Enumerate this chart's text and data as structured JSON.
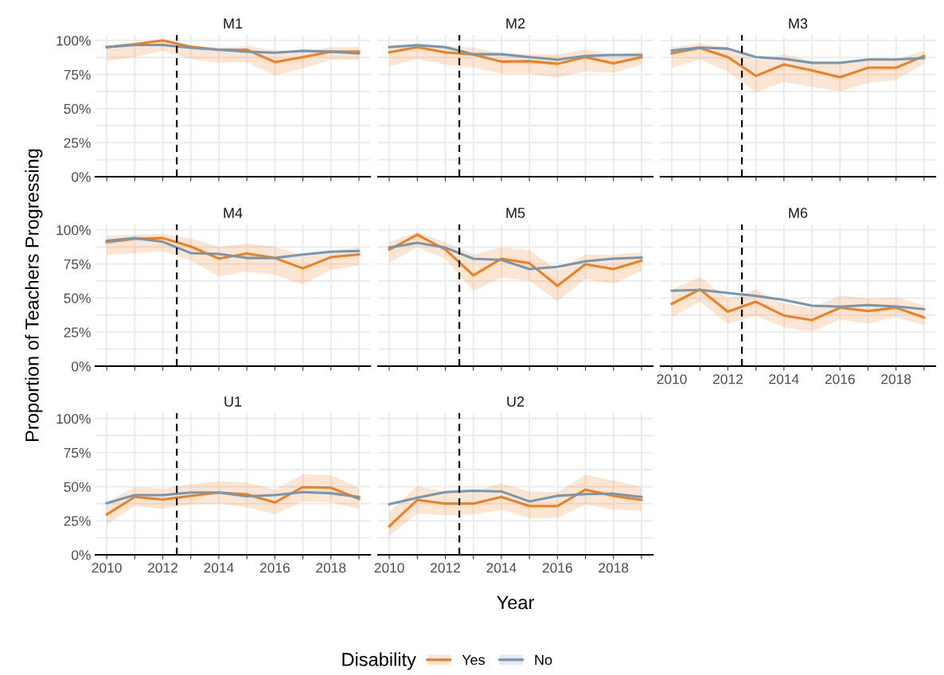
{
  "chart_data": [
    {
      "type": "line",
      "title": "M1",
      "x": [
        2010,
        2011,
        2012,
        2013,
        2014,
        2015,
        2016,
        2017,
        2018,
        2019
      ],
      "xlim": [
        2009.6,
        2019.4
      ],
      "ylim": [
        0,
        104
      ],
      "xticks": [
        {
          "value": 2010,
          "label": null
        },
        {
          "value": 2011,
          "label": null
        },
        {
          "value": 2012,
          "label": null
        },
        {
          "value": 2013,
          "label": null
        },
        {
          "value": 2014,
          "label": null
        },
        {
          "value": 2015,
          "label": null
        },
        {
          "value": 2016,
          "label": null
        },
        {
          "value": 2017,
          "label": null
        },
        {
          "value": 2018,
          "label": null
        },
        {
          "value": 2019,
          "label": null
        }
      ],
      "yticks": [
        {
          "value": 0,
          "label": "0%"
        },
        {
          "value": 12.5,
          "label": null
        },
        {
          "value": 25,
          "label": "25%"
        },
        {
          "value": 37.5,
          "label": null
        },
        {
          "value": 50,
          "label": "50%"
        },
        {
          "value": 62.5,
          "label": null
        },
        {
          "value": 75,
          "label": "75%"
        },
        {
          "value": 87.5,
          "label": null
        },
        {
          "value": 100,
          "label": "100%"
        }
      ],
      "grid": true,
      "tick_labels": "y",
      "ref_lines": [
        {
          "axis": "x",
          "value": 2012.5,
          "color": "#000000",
          "line_style": "dashed"
        }
      ],
      "series": [
        {
          "color": "#ee7f22",
          "values": [
            95.1,
            97.3,
            100,
            95.4,
            93.2,
            93.2,
            84.2,
            87.8,
            91.8,
            91.8
          ],
          "lower": [
            85,
            87.8,
            92.4,
            86.4,
            83.7,
            84.2,
            74.2,
            79.6,
            85.9,
            85.9
          ],
          "upper": [
            96.5,
            98,
            100,
            96.5,
            94.6,
            95.9,
            92.7,
            91.8,
            95.1,
            95.1
          ]
        },
        {
          "color": "#7896ad",
          "values": [
            95.1,
            96.7,
            96.7,
            94.6,
            93.2,
            91.8,
            91,
            92.4,
            91.8,
            90.5
          ]
        }
      ]
    },
    {
      "type": "line",
      "title": "M2",
      "x": [
        2010,
        2011,
        2012,
        2013,
        2014,
        2015,
        2016,
        2017,
        2018,
        2019
      ],
      "xlim": [
        2009.6,
        2019.4
      ],
      "ylim": [
        0,
        104
      ],
      "xticks": [
        {
          "value": 2010,
          "label": null
        },
        {
          "value": 2011,
          "label": null
        },
        {
          "value": 2012,
          "label": null
        },
        {
          "value": 2013,
          "label": null
        },
        {
          "value": 2014,
          "label": null
        },
        {
          "value": 2015,
          "label": null
        },
        {
          "value": 2016,
          "label": null
        },
        {
          "value": 2017,
          "label": null
        },
        {
          "value": 2018,
          "label": null
        },
        {
          "value": 2019,
          "label": null
        }
      ],
      "yticks": [
        {
          "value": 0,
          "label": null
        },
        {
          "value": 12.5,
          "label": null
        },
        {
          "value": 25,
          "label": null
        },
        {
          "value": 37.5,
          "label": null
        },
        {
          "value": 50,
          "label": null
        },
        {
          "value": 62.5,
          "label": null
        },
        {
          "value": 75,
          "label": null
        },
        {
          "value": 87.5,
          "label": null
        },
        {
          "value": 100,
          "label": null
        }
      ],
      "grid": true,
      "tick_labels": false,
      "ref_lines": [
        {
          "axis": "x",
          "value": 2012.5,
          "color": "#000000",
          "line_style": "dashed"
        }
      ],
      "series": [
        {
          "color": "#ee7f22",
          "values": [
            91.3,
            95.1,
            91.3,
            89.7,
            84.5,
            84.8,
            82.9,
            87.8,
            83.2,
            87.8
          ],
          "lower": [
            81,
            86.4,
            82.3,
            80.2,
            75.5,
            75.5,
            72.8,
            77.4,
            76.4,
            82.3
          ],
          "upper": [
            96.5,
            98,
            95.9,
            94.6,
            90.5,
            89.9,
            89.9,
            93.2,
            89.7,
            91.8
          ]
        },
        {
          "color": "#7896ad",
          "values": [
            95.1,
            96.5,
            95.1,
            89.9,
            89.9,
            87.8,
            85.9,
            88.6,
            89.4,
            89.4
          ]
        }
      ]
    },
    {
      "type": "line",
      "title": "M3",
      "x": [
        2010,
        2011,
        2012,
        2013,
        2014,
        2015,
        2016,
        2017,
        2018,
        2019
      ],
      "xlim": [
        2009.6,
        2019.4
      ],
      "ylim": [
        0,
        104
      ],
      "xticks": [
        {
          "value": 2010,
          "label": null
        },
        {
          "value": 2011,
          "label": null
        },
        {
          "value": 2012,
          "label": null
        },
        {
          "value": 2013,
          "label": null
        },
        {
          "value": 2014,
          "label": null
        },
        {
          "value": 2015,
          "label": null
        },
        {
          "value": 2016,
          "label": null
        },
        {
          "value": 2017,
          "label": null
        },
        {
          "value": 2018,
          "label": null
        },
        {
          "value": 2019,
          "label": null
        }
      ],
      "yticks": [
        {
          "value": 0,
          "label": null
        },
        {
          "value": 12.5,
          "label": null
        },
        {
          "value": 25,
          "label": null
        },
        {
          "value": 37.5,
          "label": null
        },
        {
          "value": 50,
          "label": null
        },
        {
          "value": 62.5,
          "label": null
        },
        {
          "value": 75,
          "label": null
        },
        {
          "value": 87.5,
          "label": null
        },
        {
          "value": 100,
          "label": null
        }
      ],
      "grid": true,
      "tick_labels": false,
      "ref_lines": [
        {
          "axis": "x",
          "value": 2012.5,
          "color": "#000000",
          "line_style": "dashed"
        }
      ],
      "series": [
        {
          "color": "#ee7f22",
          "values": [
            90.6,
            94.5,
            87.8,
            74,
            82.4,
            78,
            73,
            80,
            80,
            88.7
          ],
          "lower": [
            80,
            86,
            77,
            62,
            69.5,
            66,
            62.6,
            69,
            71,
            83
          ],
          "upper": [
            95,
            97.7,
            95,
            86,
            90,
            85,
            85,
            86,
            86,
            92.6
          ]
        },
        {
          "color": "#7896ad",
          "values": [
            92.6,
            94.8,
            94,
            87.8,
            86.5,
            83.6,
            83.6,
            86,
            86,
            87
          ]
        }
      ]
    },
    {
      "type": "line",
      "title": "M4",
      "ylabel": "Proportion of Teachers Progressing",
      "x": [
        2010,
        2011,
        2012,
        2013,
        2014,
        2015,
        2016,
        2017,
        2018,
        2019
      ],
      "xlim": [
        2009.6,
        2019.4
      ],
      "ylim": [
        0,
        104
      ],
      "xticks": [
        {
          "value": 2010,
          "label": null
        },
        {
          "value": 2011,
          "label": null
        },
        {
          "value": 2012,
          "label": null
        },
        {
          "value": 2013,
          "label": null
        },
        {
          "value": 2014,
          "label": null
        },
        {
          "value": 2015,
          "label": null
        },
        {
          "value": 2016,
          "label": null
        },
        {
          "value": 2017,
          "label": null
        },
        {
          "value": 2018,
          "label": null
        },
        {
          "value": 2019,
          "label": null
        }
      ],
      "yticks": [
        {
          "value": 0,
          "label": "0%"
        },
        {
          "value": 12.5,
          "label": null
        },
        {
          "value": 25,
          "label": "25%"
        },
        {
          "value": 37.5,
          "label": null
        },
        {
          "value": 50,
          "label": "50%"
        },
        {
          "value": 62.5,
          "label": null
        },
        {
          "value": 75,
          "label": "75%"
        },
        {
          "value": 87.5,
          "label": null
        },
        {
          "value": 100,
          "label": "100%"
        }
      ],
      "grid": true,
      "tick_labels": "y",
      "ref_lines": [
        {
          "axis": "x",
          "value": 2012.5,
          "color": "#000000",
          "line_style": "dashed"
        }
      ],
      "series": [
        {
          "color": "#ee7f22",
          "values": [
            91,
            93.5,
            94,
            87.8,
            78.9,
            82.7,
            79.4,
            71.8,
            80,
            82
          ],
          "lower": [
            81.6,
            83,
            84.3,
            77.5,
            66,
            69.4,
            67,
            60,
            70.7,
            74
          ],
          "upper": [
            95.7,
            96.5,
            97,
            93.8,
            87.5,
            90,
            87.5,
            81.6,
            85,
            87
          ]
        },
        {
          "color": "#7896ad",
          "values": [
            92,
            94,
            91.3,
            83,
            82.4,
            79.4,
            79.4,
            82,
            84,
            84.5
          ]
        }
      ]
    },
    {
      "type": "line",
      "title": "M5",
      "x": [
        2010,
        2011,
        2012,
        2013,
        2014,
        2015,
        2016,
        2017,
        2018,
        2019
      ],
      "xlim": [
        2009.6,
        2019.4
      ],
      "ylim": [
        0,
        104
      ],
      "xticks": [
        {
          "value": 2010,
          "label": null
        },
        {
          "value": 2011,
          "label": null
        },
        {
          "value": 2012,
          "label": null
        },
        {
          "value": 2013,
          "label": null
        },
        {
          "value": 2014,
          "label": null
        },
        {
          "value": 2015,
          "label": null
        },
        {
          "value": 2016,
          "label": null
        },
        {
          "value": 2017,
          "label": null
        },
        {
          "value": 2018,
          "label": null
        },
        {
          "value": 2019,
          "label": null
        }
      ],
      "yticks": [
        {
          "value": 0,
          "label": null
        },
        {
          "value": 12.5,
          "label": null
        },
        {
          "value": 25,
          "label": null
        },
        {
          "value": 37.5,
          "label": null
        },
        {
          "value": 50,
          "label": null
        },
        {
          "value": 62.5,
          "label": null
        },
        {
          "value": 75,
          "label": null
        },
        {
          "value": 87.5,
          "label": null
        },
        {
          "value": 100,
          "label": null
        }
      ],
      "grid": true,
      "tick_labels": false,
      "ref_lines": [
        {
          "axis": "x",
          "value": 2012.5,
          "color": "#000000",
          "line_style": "dashed"
        }
      ],
      "series": [
        {
          "color": "#ee7f22",
          "values": [
            85.6,
            96.5,
            85.6,
            66.7,
            78.9,
            75.6,
            59,
            74.8,
            71.3,
            77.5
          ],
          "lower": [
            75.6,
            87.5,
            78.9,
            55,
            65.3,
            62.6,
            47.7,
            64,
            60.4,
            70
          ],
          "upper": [
            91,
            98.4,
            91,
            81.6,
            87.5,
            85,
            70.7,
            82,
            81.6,
            83.5
          ]
        },
        {
          "color": "#7896ad",
          "values": [
            87,
            90.5,
            87,
            78.9,
            78,
            71.3,
            72.9,
            77,
            78.9,
            79.7
          ]
        }
      ]
    },
    {
      "type": "line",
      "title": "M6",
      "x": [
        2010,
        2011,
        2012,
        2013,
        2014,
        2015,
        2016,
        2017,
        2018,
        2019
      ],
      "xlim": [
        2009.6,
        2019.4
      ],
      "ylim": [
        0,
        104
      ],
      "xticks": [
        2010,
        {
          "value": 2011,
          "label": null
        },
        2012,
        {
          "value": 2013,
          "label": null
        },
        2014,
        {
          "value": 2015,
          "label": null
        },
        2016,
        {
          "value": 2017,
          "label": null
        },
        2018,
        {
          "value": 2019,
          "label": null
        }
      ],
      "yticks": [
        {
          "value": 0,
          "label": null
        },
        {
          "value": 12.5,
          "label": null
        },
        {
          "value": 25,
          "label": null
        },
        {
          "value": 37.5,
          "label": null
        },
        {
          "value": 50,
          "label": null
        },
        {
          "value": 62.5,
          "label": null
        },
        {
          "value": 75,
          "label": null
        },
        {
          "value": 87.5,
          "label": null
        },
        {
          "value": 100,
          "label": null
        }
      ],
      "grid": true,
      "tick_labels": "x",
      "ref_lines": [
        {
          "axis": "x",
          "value": 2012.5,
          "color": "#000000",
          "line_style": "dashed"
        }
      ],
      "series": [
        {
          "color": "#ee7f22",
          "values": [
            45.8,
            56.3,
            40,
            47.3,
            37.1,
            33.8,
            42.9,
            40.4,
            42.9,
            35.8
          ],
          "lower": [
            36,
            47.3,
            31.3,
            37.1,
            28.5,
            25.6,
            34.2,
            31.3,
            36,
            30
          ],
          "upper": [
            56.3,
            65.4,
            49.6,
            56.3,
            45.8,
            42.9,
            51.9,
            49.6,
            50.6,
            44.8
          ]
        },
        {
          "color": "#7896ad",
          "values": [
            55.4,
            56,
            53.8,
            51.5,
            48.7,
            44.4,
            43.7,
            44.8,
            43.8,
            41.9
          ]
        }
      ]
    },
    {
      "type": "line",
      "title": "U1",
      "x": [
        2010,
        2011,
        2012,
        2013,
        2014,
        2015,
        2016,
        2017,
        2018,
        2019
      ],
      "xlim": [
        2009.6,
        2019.4
      ],
      "ylim": [
        0,
        104
      ],
      "xticks": [
        2010,
        {
          "value": 2011,
          "label": null
        },
        2012,
        {
          "value": 2013,
          "label": null
        },
        2014,
        {
          "value": 2015,
          "label": null
        },
        2016,
        {
          "value": 2017,
          "label": null
        },
        2018,
        {
          "value": 2019,
          "label": null
        }
      ],
      "yticks": [
        {
          "value": 0,
          "label": "0%"
        },
        {
          "value": 12.5,
          "label": null
        },
        {
          "value": 25,
          "label": "25%"
        },
        {
          "value": 37.5,
          "label": null
        },
        {
          "value": 50,
          "label": "50%"
        },
        {
          "value": 62.5,
          "label": null
        },
        {
          "value": 75,
          "label": "75%"
        },
        {
          "value": 87.5,
          "label": null
        },
        {
          "value": 100,
          "label": "100%"
        }
      ],
      "grid": true,
      "ref_lines": [
        {
          "axis": "x",
          "value": 2012.5,
          "color": "#000000",
          "line_style": "dashed"
        }
      ],
      "series": [
        {
          "color": "#ee7f22",
          "values": [
            29.6,
            42.5,
            40.6,
            43.3,
            45.7,
            44.4,
            38.4,
            49.7,
            49.2,
            41.1
          ],
          "lower": [
            22.3,
            35.8,
            33.9,
            37.1,
            37.6,
            34.9,
            29.8,
            39.2,
            38.4,
            33.9
          ],
          "upper": [
            38.4,
            50,
            48.4,
            51.9,
            54,
            53.2,
            47.8,
            59.1,
            58.6,
            49.2
          ]
        },
        {
          "color": "#7896ad",
          "values": [
            37.9,
            43.8,
            43.8,
            45.7,
            45.7,
            43,
            43.8,
            46,
            45.2,
            42.5
          ]
        }
      ]
    },
    {
      "type": "line",
      "title": "U2",
      "xlabel": "Year",
      "legend": "bottom",
      "legend_title": "Disability",
      "x": [
        2010,
        2011,
        2012,
        2013,
        2014,
        2015,
        2016,
        2017,
        2018,
        2019
      ],
      "xlim": [
        2009.6,
        2019.4
      ],
      "ylim": [
        0,
        104
      ],
      "xticks": [
        2010,
        {
          "value": 2011,
          "label": null
        },
        2012,
        {
          "value": 2013,
          "label": null
        },
        2014,
        {
          "value": 2015,
          "label": null
        },
        2016,
        {
          "value": 2017,
          "label": null
        },
        2018,
        {
          "value": 2019,
          "label": null
        }
      ],
      "yticks": [
        {
          "value": 0,
          "label": null
        },
        {
          "value": 12.5,
          "label": null
        },
        {
          "value": 25,
          "label": null
        },
        {
          "value": 37.5,
          "label": null
        },
        {
          "value": 50,
          "label": null
        },
        {
          "value": 62.5,
          "label": null
        },
        {
          "value": 75,
          "label": null
        },
        {
          "value": 87.5,
          "label": null
        },
        {
          "value": 100,
          "label": null
        }
      ],
      "grid": true,
      "tick_labels": "x",
      "ref_lines": [
        {
          "axis": "x",
          "value": 2012.5,
          "color": "#000000",
          "line_style": "dashed"
        }
      ],
      "series": [
        {
          "name": "Yes",
          "color": "#ee7f22",
          "values": [
            21,
            40.3,
            37.6,
            37.6,
            42.5,
            35.8,
            35.8,
            47.8,
            43.3,
            40.3
          ],
          "lower": [
            14.2,
            30.4,
            29,
            29.6,
            33.1,
            26.9,
            27.2,
            37.1,
            33.1,
            32.3
          ],
          "upper": [
            31.7,
            50.5,
            46.5,
            46.5,
            52.4,
            46.5,
            46,
            58.6,
            54.6,
            50
          ]
        },
        {
          "name": "No",
          "color": "#7896ad",
          "values": [
            37.1,
            41.9,
            46,
            47,
            46.5,
            39.2,
            43.3,
            44.6,
            44.9,
            42.5
          ]
        }
      ]
    }
  ]
}
